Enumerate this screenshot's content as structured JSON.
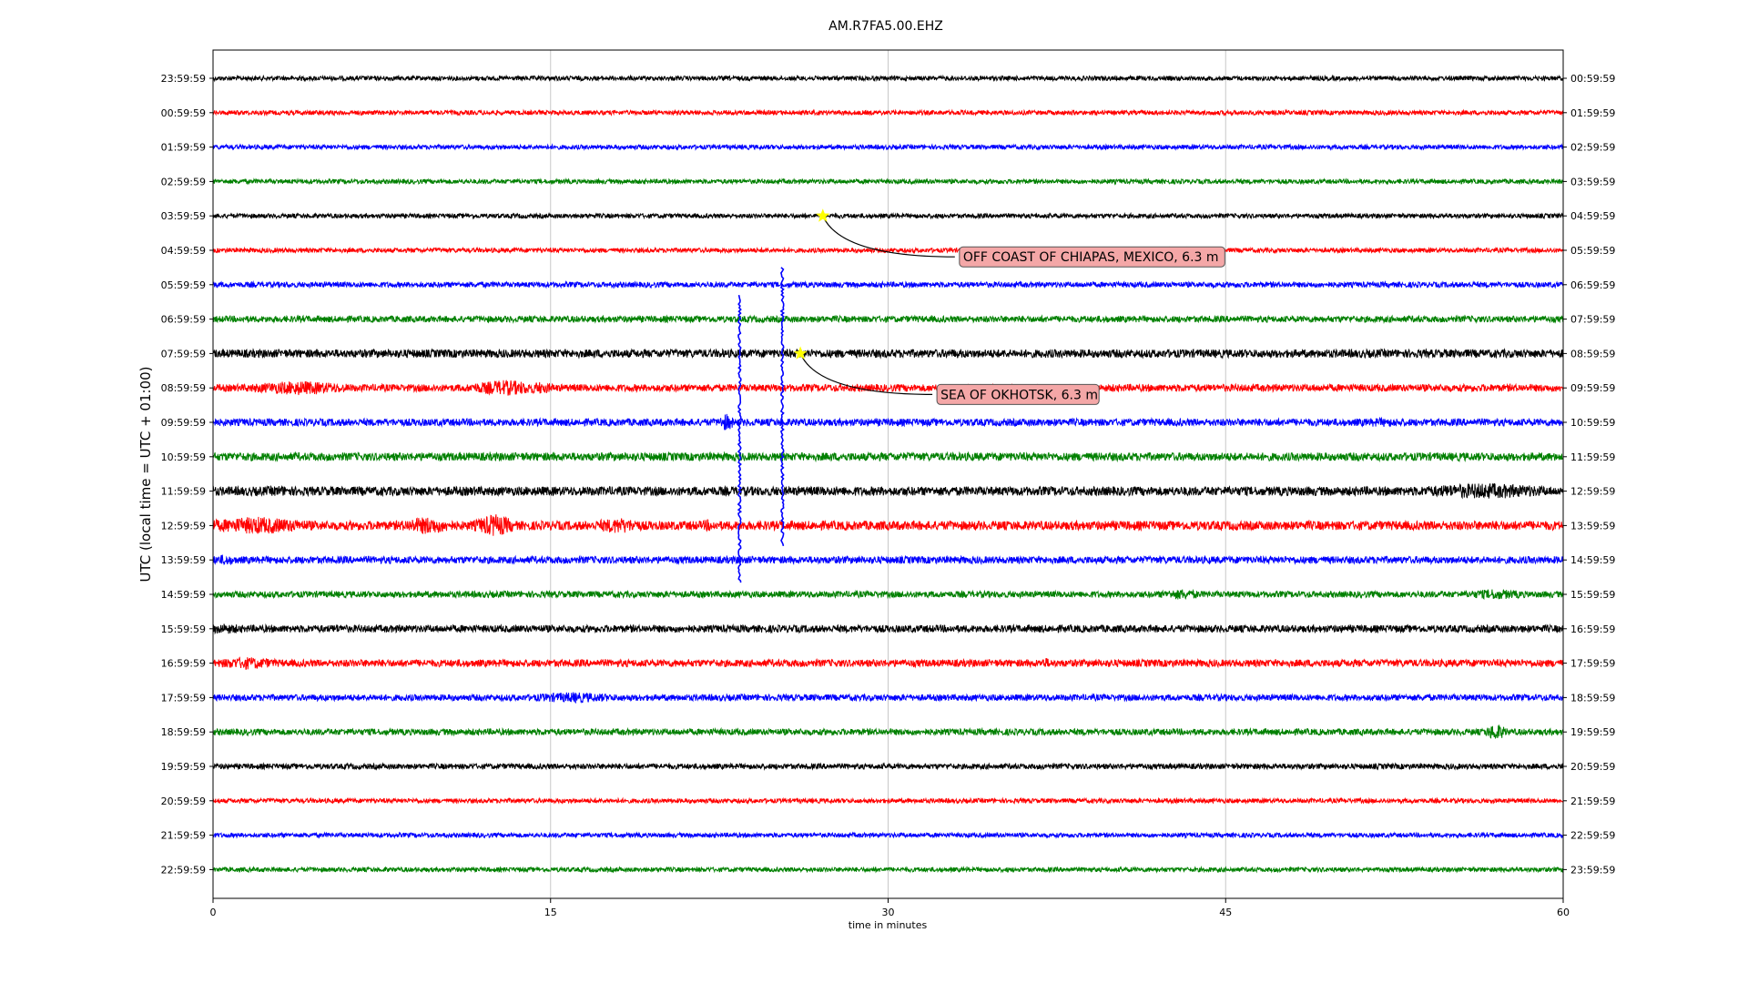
{
  "chart_data": {
    "type": "line",
    "title": "AM.R7FA5.00.EHZ",
    "xlabel": "time in minutes",
    "ylabel": "UTC (local time = UTC + 01:00)",
    "xlim": [
      0,
      60
    ],
    "x_ticks": [
      "0",
      "15",
      "30",
      "45",
      "60"
    ],
    "grid_vertical": true,
    "left_tick_labels": [
      "23:59:59",
      "00:59:59",
      "01:59:59",
      "02:59:59",
      "03:59:59",
      "04:59:59",
      "05:59:59",
      "06:59:59",
      "07:59:59",
      "08:59:59",
      "09:59:59",
      "10:59:59",
      "11:59:59",
      "12:59:59",
      "13:59:59",
      "14:59:59",
      "15:59:59",
      "16:59:59",
      "17:59:59",
      "18:59:59",
      "19:59:59",
      "20:59:59",
      "21:59:59",
      "22:59:59"
    ],
    "right_tick_labels": [
      "00:59:59",
      "01:59:59",
      "02:59:59",
      "03:59:59",
      "04:59:59",
      "05:59:59",
      "06:59:59",
      "07:59:59",
      "08:59:59",
      "09:59:59",
      "10:59:59",
      "11:59:59",
      "12:59:59",
      "13:59:59",
      "14:59:59",
      "15:59:59",
      "16:59:59",
      "17:59:59",
      "18:59:59",
      "19:59:59",
      "20:59:59",
      "21:59:59",
      "22:59:59",
      "23:59:59"
    ],
    "trace_colors": [
      "#000000",
      "#ff0000",
      "#0000ff",
      "#008000"
    ],
    "events": [
      {
        "label": "OFF COAST OF CHIAPAS, MEXICO, 6.3 m",
        "row": 4,
        "minute": 27.1
      },
      {
        "label": "SEA OF OKHOTSK, 6.3 m",
        "row": 8,
        "minute": 26.1
      }
    ],
    "marker_color": "#ffff00",
    "annotation_box_color": "#f4a7a7"
  }
}
